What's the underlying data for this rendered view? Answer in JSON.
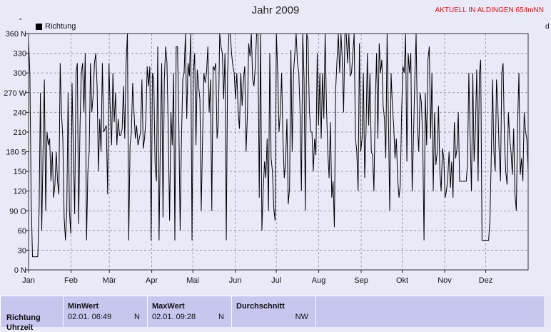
{
  "chart_data": {
    "type": "line",
    "title": "Jahr 2009",
    "subtitle": "AKTUELL IN ALDINGEN 654mNN",
    "y_unit_mark": "°",
    "right_mark": "d",
    "legend": "Richtung",
    "ylim": [
      0,
      360
    ],
    "yticks": [
      "0 N",
      "30",
      "60",
      "90 O",
      "120",
      "150",
      "180 S",
      "210",
      "240",
      "270 W",
      "300",
      "330",
      "360 N"
    ],
    "xlim": [
      1,
      366
    ],
    "months": [
      {
        "label": "Jan",
        "day": 1
      },
      {
        "label": "Feb",
        "day": 32
      },
      {
        "label": "Mär",
        "day": 60
      },
      {
        "label": "Apr",
        "day": 91
      },
      {
        "label": "Mai",
        "day": 121
      },
      {
        "label": "Jun",
        "day": 152
      },
      {
        "label": "Jul",
        "day": 182
      },
      {
        "label": "Aug",
        "day": 213
      },
      {
        "label": "Sep",
        "day": 244
      },
      {
        "label": "Okt",
        "day": 274
      },
      {
        "label": "Nov",
        "day": 305
      },
      {
        "label": "Dez",
        "day": 335
      }
    ],
    "series": [
      {
        "name": "Richtung",
        "color": "#000000",
        "values": [
          350,
          300,
          105,
          20,
          20,
          20,
          20,
          20,
          90,
          270,
          60,
          180,
          290,
          90,
          210,
          190,
          200,
          135,
          180,
          110,
          130,
          180,
          135,
          115,
          315,
          240,
          200,
          80,
          45,
          90,
          270,
          90,
          55,
          285,
          180,
          85,
          300,
          315,
          70,
          215,
          300,
          315,
          240,
          330,
          45,
          150,
          180,
          315,
          240,
          265,
          315,
          330,
          280,
          150,
          230,
          180,
          315,
          210,
          215,
          220,
          115,
          315,
          240,
          190,
          300,
          225,
          270,
          190,
          230,
          205,
          205,
          215,
          280,
          200,
          315,
          360,
          45,
          190,
          210,
          285,
          240,
          200,
          220,
          190,
          200,
          210,
          290,
          185,
          200,
          230,
          310,
          280,
          310,
          45,
          300,
          290,
          160,
          135,
          340,
          45,
          200,
          315,
          80,
          290,
          340,
          315,
          210,
          75,
          240,
          190,
          300,
          45,
          340,
          340,
          225,
          60,
          200,
          290,
          300,
          360,
          230,
          315,
          295,
          360,
          45,
          300,
          330,
          190,
          305,
          280,
          260,
          90,
          200,
          300,
          285,
          300,
          340,
          240,
          290,
          90,
          310,
          305,
          315,
          200,
          225,
          360,
          340,
          330,
          260,
          330,
          45,
          300,
          360,
          360,
          330,
          310,
          300,
          260,
          300,
          240,
          215,
          300,
          250,
          290,
          310,
          180,
          235,
          345,
          325,
          360,
          290,
          280,
          310,
          360,
          360,
          110,
          360,
          60,
          120,
          165,
          140,
          200,
          90,
          330,
          170,
          150,
          95,
          75,
          360,
          300,
          210,
          240,
          300,
          200,
          140,
          165,
          230,
          100,
          125,
          335,
          180,
          300,
          330,
          360,
          315,
          300,
          240,
          120,
          360,
          290,
          90,
          360,
          350,
          245,
          210,
          210,
          150,
          200,
          175,
          330,
          220,
          300,
          200,
          300,
          230,
          360,
          250,
          180,
          140,
          225,
          110,
          135,
          65,
          275,
          320,
          360,
          300,
          360,
          320,
          240,
          360,
          360,
          315,
          360,
          295,
          300,
          330,
          360,
          200,
          180,
          120,
          345,
          180,
          200,
          300,
          140,
          210,
          330,
          220,
          300,
          180,
          175,
          120,
          250,
          330,
          200,
          345,
          300,
          320,
          250,
          230,
          170,
          360,
          230,
          90,
          300,
          250,
          220,
          170,
          200,
          140,
          110,
          130,
          240,
          310,
          300,
          360,
          165,
          330,
          300,
          330,
          120,
          200,
          290,
          360,
          220,
          180,
          270,
          255,
          200,
          45,
          270,
          190,
          320,
          340,
          200,
          300,
          120,
          240,
          160,
          180,
          250,
          150,
          120,
          185,
          170,
          110,
          120,
          140,
          180,
          125,
          165,
          110,
          225,
          170,
          185,
          240,
          135,
          135,
          135,
          135,
          135,
          135,
          160,
          300,
          200,
          120,
          300,
          165,
          215,
          305,
          135,
          300,
          320,
          45,
          45,
          45,
          45,
          45,
          45,
          75,
          170,
          290,
          180,
          150,
          290,
          250,
          180,
          135,
          300,
          315,
          200,
          150,
          130,
          240,
          200,
          180,
          145,
          215,
          115,
          90,
          220,
          300,
          145,
          170,
          135,
          240,
          210,
          200,
          150
        ]
      }
    ]
  },
  "table": {
    "row_label": "Richtung",
    "row_label_2": "Uhrzeit",
    "min": {
      "header": "MinWert",
      "value": "02.01.  06:49",
      "dir": "N"
    },
    "max": {
      "header": "MaxWert",
      "value": "02.01.  09:28",
      "dir": "N"
    },
    "avg": {
      "header": "Durchschnitt",
      "dir": "NW"
    }
  }
}
